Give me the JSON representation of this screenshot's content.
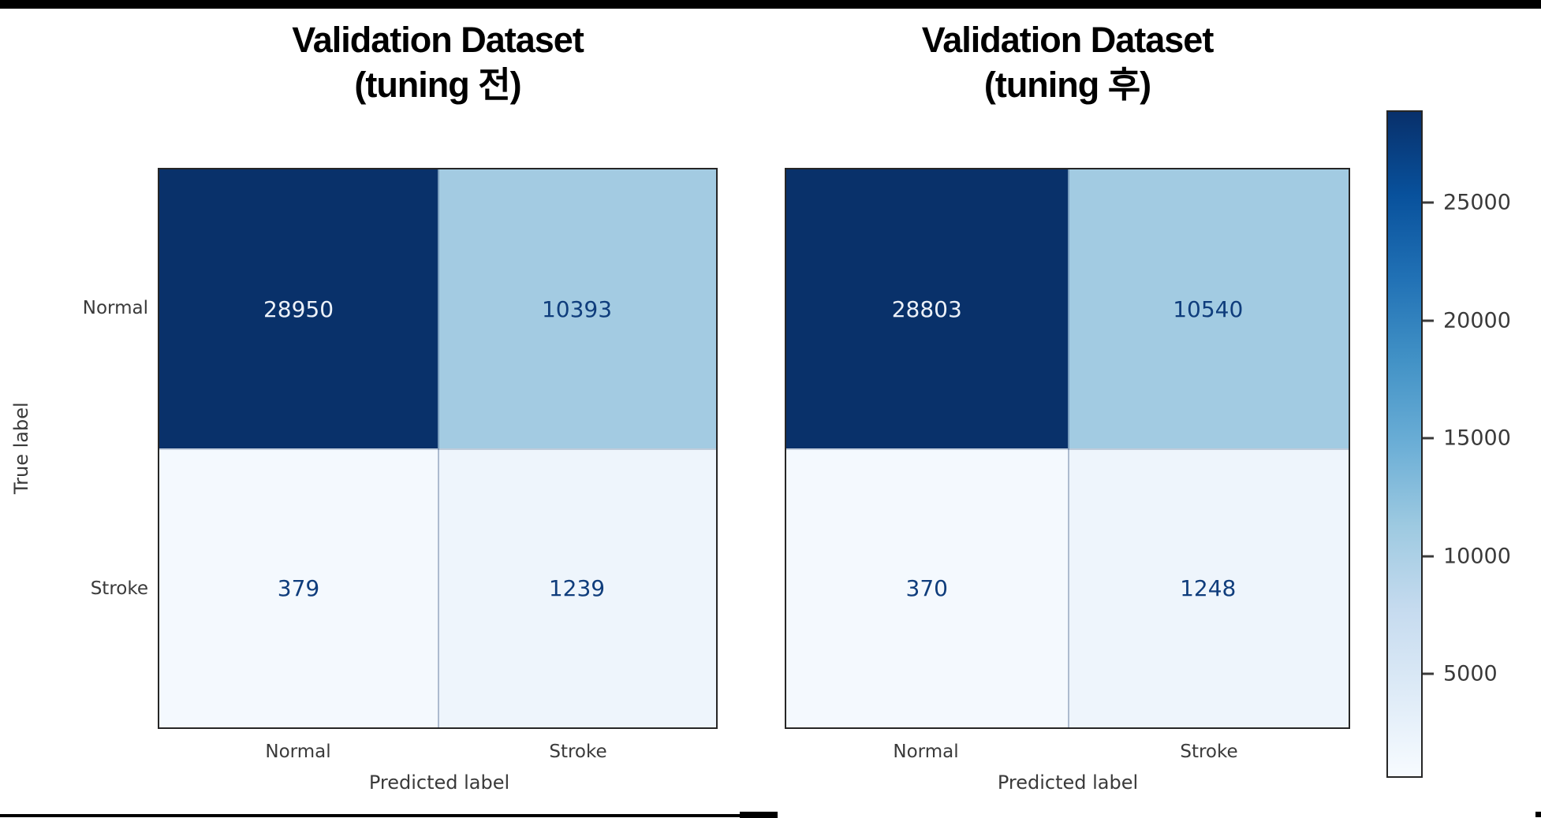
{
  "figure": {
    "background": "#ffffff",
    "top_bar_color": "#000000",
    "bottom_bar_color": "#000000"
  },
  "chart_data": [
    {
      "type": "heatmap",
      "title": "Validation Dataset (tuning 전)",
      "title_lines": [
        "Validation Dataset",
        "(tuning 전)"
      ],
      "xlabel": "Predicted label",
      "ylabel": "True label",
      "x_categories": [
        "Normal",
        "Stroke"
      ],
      "y_categories": [
        "Normal",
        "Stroke"
      ],
      "values": [
        [
          28950,
          10393
        ],
        [
          379,
          1239
        ]
      ],
      "colormap": "Blues",
      "legend_position": "shared-colorbar-right"
    },
    {
      "type": "heatmap",
      "title": "Validation Dataset (tuning 후)",
      "title_lines": [
        "Validation Dataset",
        "(tuning 후)"
      ],
      "xlabel": "Predicted label",
      "ylabel": "",
      "x_categories": [
        "Normal",
        "Stroke"
      ],
      "y_categories": [
        "Normal",
        "Stroke"
      ],
      "values": [
        [
          28803,
          10540
        ],
        [
          370,
          1248
        ]
      ],
      "colormap": "Blues",
      "legend_position": "shared-colorbar-right"
    }
  ],
  "colorbar": {
    "tick_labels": [
      "25000",
      "20000",
      "15000",
      "10000",
      "5000"
    ],
    "tick_values": [
      25000,
      20000,
      15000,
      10000,
      5000
    ],
    "gradient_stops": [
      "#08306b",
      "#08519c",
      "#2171b5",
      "#4292c6",
      "#6baed6",
      "#9ecae1",
      "#c6dbef",
      "#deebf7",
      "#f7fbff"
    ]
  },
  "view": {
    "title_color": "#000000",
    "axis_text_color": "#3a3a3a",
    "matrix_border_color": "#262626",
    "charts": [
      {
        "cell_bg": [
          "#09316a",
          "#a3cbe2",
          "#f4f9fe",
          "#eef5fc"
        ],
        "cell_fg": [
          "#ecf1f8",
          "#0f3d7c",
          "#0f3d7c",
          "#0f3d7c"
        ]
      },
      {
        "cell_bg": [
          "#09316a",
          "#a2cbe2",
          "#f4f9fe",
          "#eef5fc"
        ],
        "cell_fg": [
          "#ecf1f8",
          "#0f3d7c",
          "#0f3d7c",
          "#0f3d7c"
        ]
      }
    ]
  }
}
